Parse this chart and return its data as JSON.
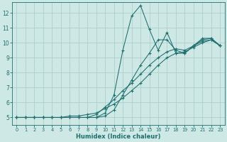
{
  "xlabel": "Humidex (Indice chaleur)",
  "xlim": [
    -0.5,
    23.5
  ],
  "ylim": [
    4.5,
    12.7
  ],
  "xticks": [
    0,
    1,
    2,
    3,
    4,
    5,
    6,
    7,
    8,
    9,
    10,
    11,
    12,
    13,
    14,
    15,
    16,
    17,
    18,
    19,
    20,
    21,
    22,
    23
  ],
  "yticks": [
    5,
    6,
    7,
    8,
    9,
    10,
    11,
    12
  ],
  "bg_color": "#cde8e5",
  "line_color": "#1e6e6e",
  "grid_color": "#aed0cd",
  "lines": [
    {
      "x": [
        0,
        1,
        2,
        3,
        4,
        5,
        6,
        7,
        8,
        9,
        10,
        11,
        12,
        13,
        14,
        15,
        16,
        17,
        18,
        19,
        20,
        21,
        22,
        23
      ],
      "y": [
        5.0,
        5.0,
        5.0,
        5.0,
        5.0,
        5.0,
        5.0,
        5.0,
        5.0,
        5.0,
        5.3,
        6.5,
        9.5,
        11.8,
        12.5,
        10.9,
        9.5,
        10.7,
        9.3,
        9.3,
        9.8,
        10.3,
        10.3,
        9.8
      ]
    },
    {
      "x": [
        0,
        1,
        2,
        3,
        4,
        5,
        6,
        7,
        8,
        9,
        10,
        11,
        12,
        13,
        14,
        15,
        16,
        17,
        18,
        19,
        20,
        21,
        22,
        23
      ],
      "y": [
        5.0,
        5.0,
        5.0,
        5.0,
        5.0,
        5.0,
        5.0,
        5.0,
        5.0,
        5.0,
        5.1,
        5.5,
        6.5,
        7.5,
        8.5,
        9.3,
        10.2,
        10.2,
        9.5,
        9.3,
        9.8,
        10.2,
        10.3,
        9.8
      ]
    },
    {
      "x": [
        0,
        1,
        2,
        3,
        4,
        5,
        6,
        7,
        8,
        9,
        10,
        11,
        12,
        13,
        14,
        15,
        16,
        17,
        18,
        19,
        20,
        21,
        22,
        23
      ],
      "y": [
        5.0,
        5.0,
        5.0,
        5.0,
        5.0,
        5.0,
        5.0,
        5.0,
        5.0,
        5.2,
        5.7,
        6.2,
        6.8,
        7.3,
        7.9,
        8.5,
        9.0,
        9.4,
        9.6,
        9.5,
        9.8,
        10.1,
        10.2,
        9.8
      ]
    },
    {
      "x": [
        0,
        1,
        2,
        3,
        4,
        5,
        6,
        7,
        8,
        9,
        10,
        11,
        12,
        13,
        14,
        15,
        16,
        17,
        18,
        19,
        20,
        21,
        22,
        23
      ],
      "y": [
        5.0,
        5.0,
        5.0,
        5.0,
        5.0,
        5.0,
        5.1,
        5.1,
        5.2,
        5.3,
        5.6,
        5.9,
        6.3,
        6.8,
        7.3,
        7.9,
        8.5,
        9.0,
        9.3,
        9.4,
        9.7,
        10.0,
        10.2,
        9.8
      ]
    }
  ]
}
